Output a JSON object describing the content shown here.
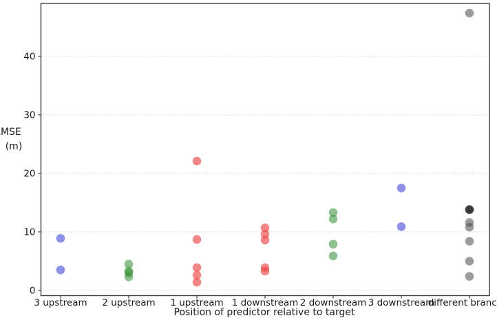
{
  "chart_data": {
    "type": "scatter",
    "title": "",
    "xlabel": "Position of predictor relative to target",
    "ylabel": "RMSE (m)",
    "ylabel_lines": [
      "RMSE",
      "(m)"
    ],
    "categories": [
      "3 upstream",
      "2 upstream",
      "1 upstream",
      "1 downstream",
      "2 downstream",
      "3 downstream",
      "different branch"
    ],
    "y_ticks": [
      0,
      10,
      20,
      30,
      40
    ],
    "ylim": [
      -0.9,
      49.1
    ],
    "grid": "horizontal dotted gridlines at each y tick",
    "legend_position": "none",
    "marker": "circle, semi-transparent, no edge",
    "colors": {
      "blue": "rgba(58,68,215,0.58)",
      "green": "rgba(45,140,45,0.55)",
      "red": "rgba(236,62,62,0.62)",
      "gray": "rgba(75,75,75,0.55)",
      "dark": "rgba(10,10,10,0.8)"
    },
    "groups": [
      {
        "category": "3 upstream",
        "color_name": "blue",
        "values": [
          8.9,
          3.5
        ]
      },
      {
        "category": "2 upstream",
        "color_name": "green",
        "values": [
          4.5,
          3.3,
          3.0,
          2.3
        ]
      },
      {
        "category": "1 upstream",
        "color_name": "red",
        "values": [
          22.1,
          8.7,
          3.9,
          2.6,
          1.4
        ]
      },
      {
        "category": "1 downstream",
        "color_name": "red",
        "values": [
          10.7,
          9.6,
          8.6,
          3.9,
          3.3
        ]
      },
      {
        "category": "2 downstream",
        "color_name": "green",
        "values": [
          13.3,
          12.2,
          7.9,
          5.9
        ]
      },
      {
        "category": "3 downstream",
        "color_name": "blue",
        "values": [
          17.5,
          10.9
        ]
      },
      {
        "category": "different branch",
        "color_name": "gray",
        "values": [
          47.4,
          13.8,
          11.6,
          10.8,
          8.4,
          5.0,
          2.4
        ],
        "point_color_overrides": {
          "1": "dark"
        }
      }
    ]
  }
}
